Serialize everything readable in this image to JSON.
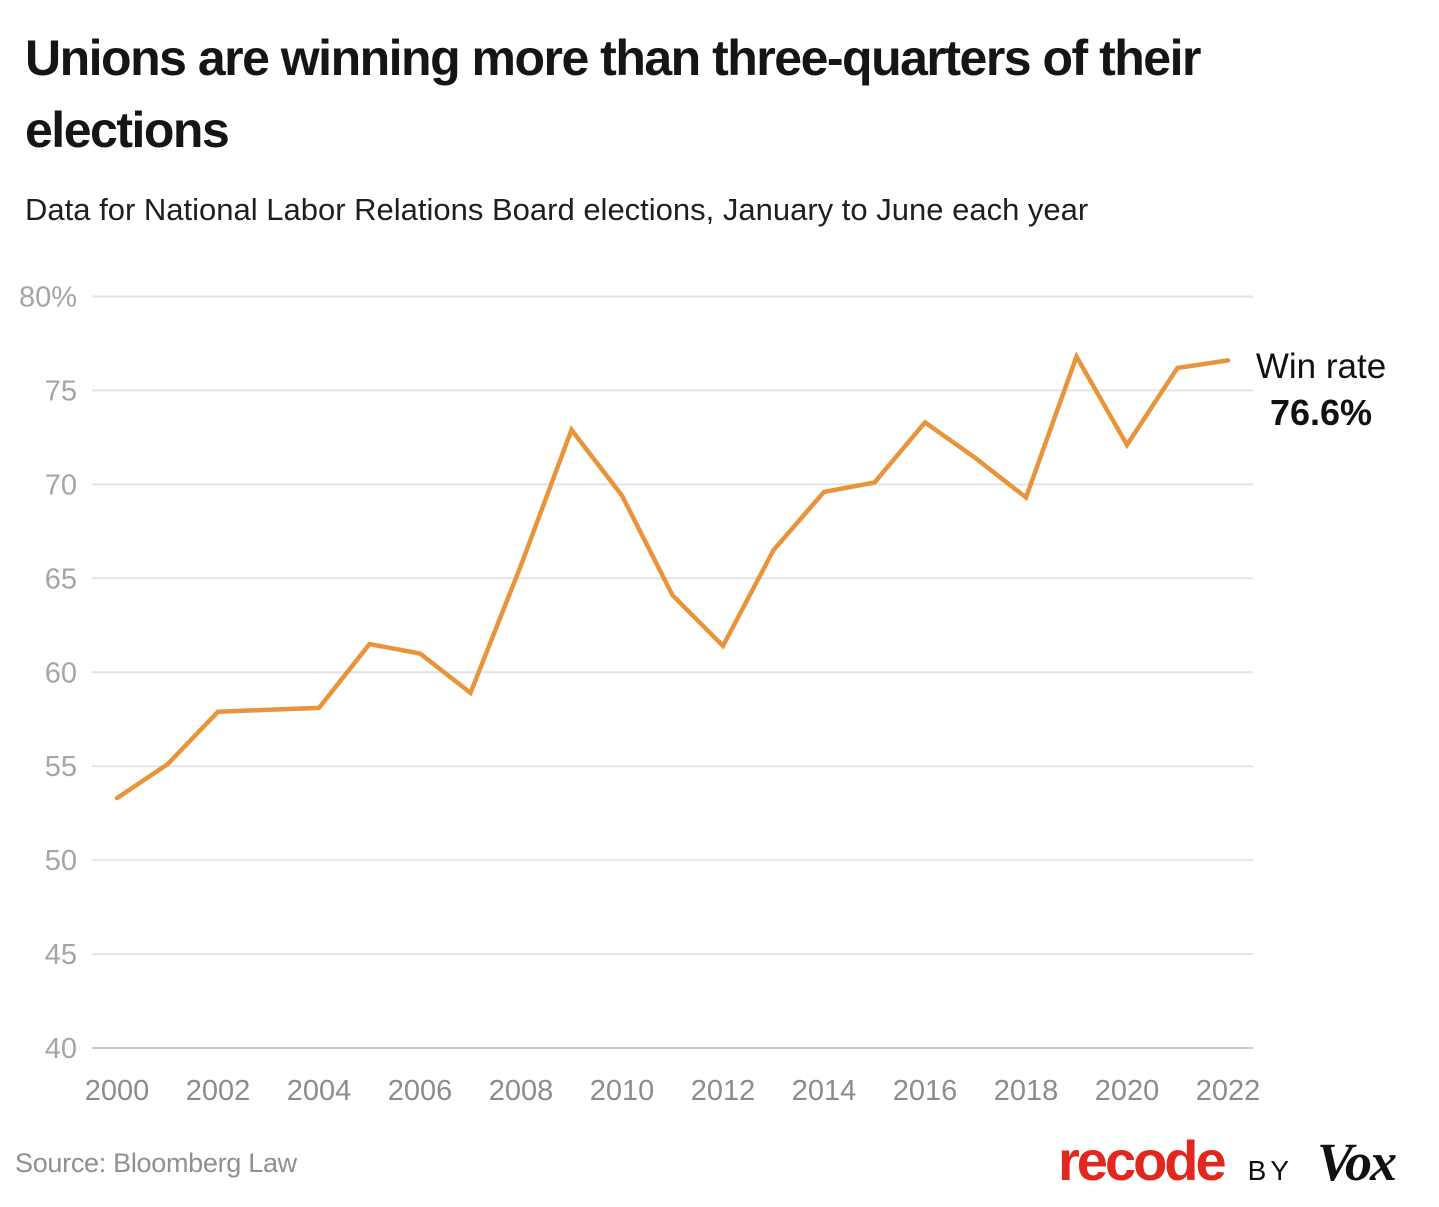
{
  "header": {
    "title_lines": [
      "Unions are winning more than three-quarters of their",
      "elections"
    ],
    "subtitle": "Data for National Labor Relations Board elections, January to June each year"
  },
  "chart_data": {
    "type": "line",
    "title": "Unions are winning more than three-quarters of their elections",
    "subtitle": "Data for National Labor Relations Board elections, January to June each year",
    "x": [
      2000,
      2001,
      2002,
      2003,
      2004,
      2005,
      2006,
      2007,
      2008,
      2009,
      2010,
      2011,
      2012,
      2013,
      2014,
      2015,
      2016,
      2017,
      2018,
      2019,
      2020,
      2021,
      2022
    ],
    "series": [
      {
        "name": "Win rate",
        "values": [
          53.3,
          55.1,
          57.9,
          58.0,
          58.1,
          61.5,
          61.0,
          58.9,
          65.7,
          72.9,
          69.4,
          64.1,
          61.4,
          66.5,
          69.6,
          70.1,
          73.3,
          71.4,
          69.3,
          76.8,
          72.1,
          76.2,
          76.6
        ]
      }
    ],
    "ylim": [
      40,
      80
    ],
    "yticks": [
      40,
      45,
      50,
      55,
      60,
      65,
      70,
      75,
      80
    ],
    "ytick_labels": [
      "40",
      "45",
      "50",
      "55",
      "60",
      "65",
      "70",
      "75",
      "80%"
    ],
    "xticks": [
      2000,
      2002,
      2004,
      2006,
      2008,
      2010,
      2012,
      2014,
      2016,
      2018,
      2020,
      2022
    ],
    "grid": "horizontal",
    "legend_position": "none",
    "annotation": {
      "label": "Win rate",
      "value": "76.6%"
    }
  },
  "colors": {
    "background": "#FFFFFF",
    "accent_line": "#E8943A",
    "grid": "#E4E4E4",
    "grid_baseline": "#CBCBCB",
    "axis_text": "#A5A5A5",
    "x_axis_text": "#8C8C8C",
    "title_text": "#151515",
    "subtitle_text": "#1F1F1F",
    "annotation_text": "#111111",
    "source_text": "#909090",
    "recode_red": "#E0281E",
    "vox_black": "#111111"
  },
  "footer": {
    "source": "Source: Bloomberg Law",
    "brand": {
      "recode": "recode",
      "by": "BY",
      "vox": "Vox"
    }
  }
}
